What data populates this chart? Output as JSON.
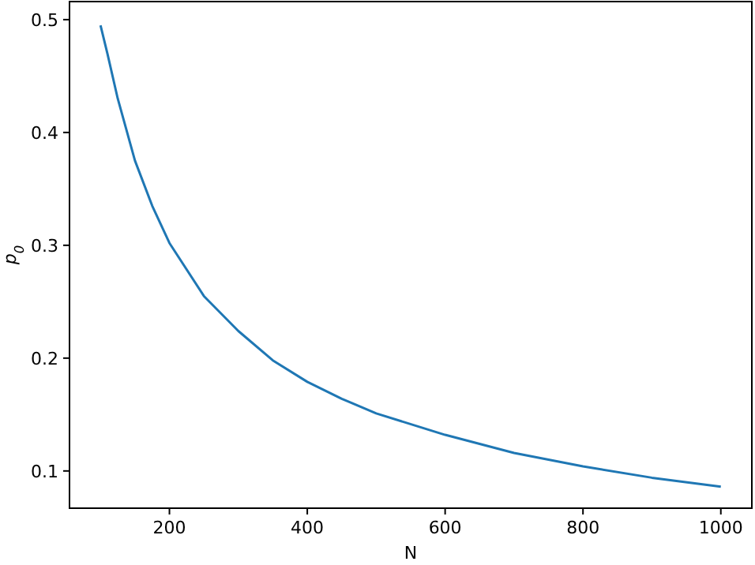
{
  "chart_data": {
    "type": "line",
    "xlabel": "N",
    "ylabel": "p$_{0}$",
    "x": [
      100,
      110,
      125,
      150,
      175,
      200,
      250,
      300,
      350,
      400,
      450,
      500,
      600,
      700,
      800,
      900,
      1000
    ],
    "series": [
      {
        "color": "#1f77b4",
        "values": [
          0.495,
          0.47,
          0.43,
          0.375,
          0.335,
          0.302,
          0.255,
          0.224,
          0.198,
          0.179,
          0.164,
          0.151,
          0.132,
          0.116,
          0.104,
          0.094,
          0.086
        ]
      }
    ],
    "xlim": [
      55,
      1045
    ],
    "ylim": [
      0.067,
      0.516
    ],
    "xticks": [
      200,
      400,
      600,
      800,
      1000
    ],
    "yticks": [
      0.1,
      0.2,
      0.3,
      0.4,
      0.5
    ],
    "grid": false
  }
}
